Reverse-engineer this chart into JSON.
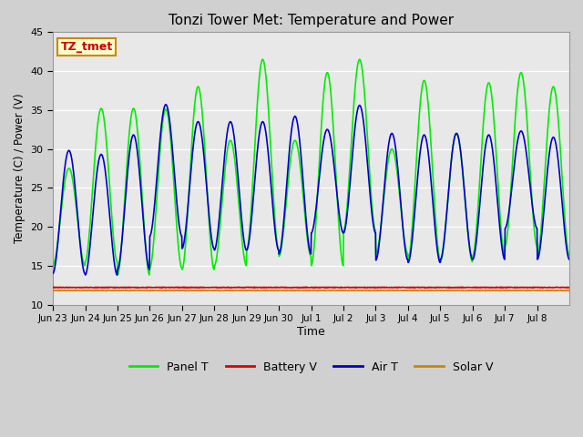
{
  "title": "Tonzi Tower Met: Temperature and Power",
  "xlabel": "Time",
  "ylabel": "Temperature (C) / Power (V)",
  "ylim": [
    10,
    45
  ],
  "annotation_text": "TZ_tmet",
  "annotation_bg": "#ffffcc",
  "annotation_border": "#cc8800",
  "annotation_text_color": "#cc0000",
  "x_tick_labels": [
    "Jun 23",
    "Jun 24",
    "Jun 25",
    "Jun 26",
    "Jun 27",
    "Jun 28",
    "Jun 29",
    "Jun 30",
    "Jul 1",
    "Jul 2",
    "Jul 3",
    "Jul 4",
    "Jul 5",
    "Jul 6",
    "Jul 7",
    "Jul 8"
  ],
  "y_tick_vals": [
    10,
    15,
    20,
    25,
    30,
    35,
    40,
    45
  ],
  "legend_entries": [
    "Panel T",
    "Battery V",
    "Air T",
    "Solar V"
  ],
  "legend_colors": [
    "#00ee00",
    "#dd0000",
    "#0000cc",
    "#cc8800"
  ],
  "panel_t_lows": [
    15.0,
    15.5,
    13.8,
    14.7,
    14.5,
    15.0,
    17.0,
    16.2,
    15.0,
    19.5,
    16.5,
    15.8,
    15.5,
    16.3,
    17.5,
    16.3
  ],
  "panel_t_highs": [
    27.5,
    35.2,
    35.2,
    35.1,
    38.0,
    31.1,
    41.5,
    31.1,
    39.8,
    41.5,
    30.0,
    38.8,
    32.0,
    38.5,
    39.8,
    38.0
  ],
  "air_t_lows": [
    14.0,
    13.8,
    14.5,
    18.8,
    17.2,
    17.0,
    17.0,
    16.5,
    19.2,
    19.2,
    15.7,
    15.4,
    15.8,
    15.8,
    19.8,
    15.8
  ],
  "air_t_highs": [
    29.8,
    29.3,
    31.8,
    35.7,
    33.5,
    33.5,
    33.5,
    34.2,
    32.5,
    35.6,
    32.0,
    31.8,
    32.0,
    31.8,
    32.3,
    31.5
  ],
  "battery_v": 12.2,
  "solar_v": 11.8,
  "n_cycles": 16,
  "pts_per_cycle": 100
}
